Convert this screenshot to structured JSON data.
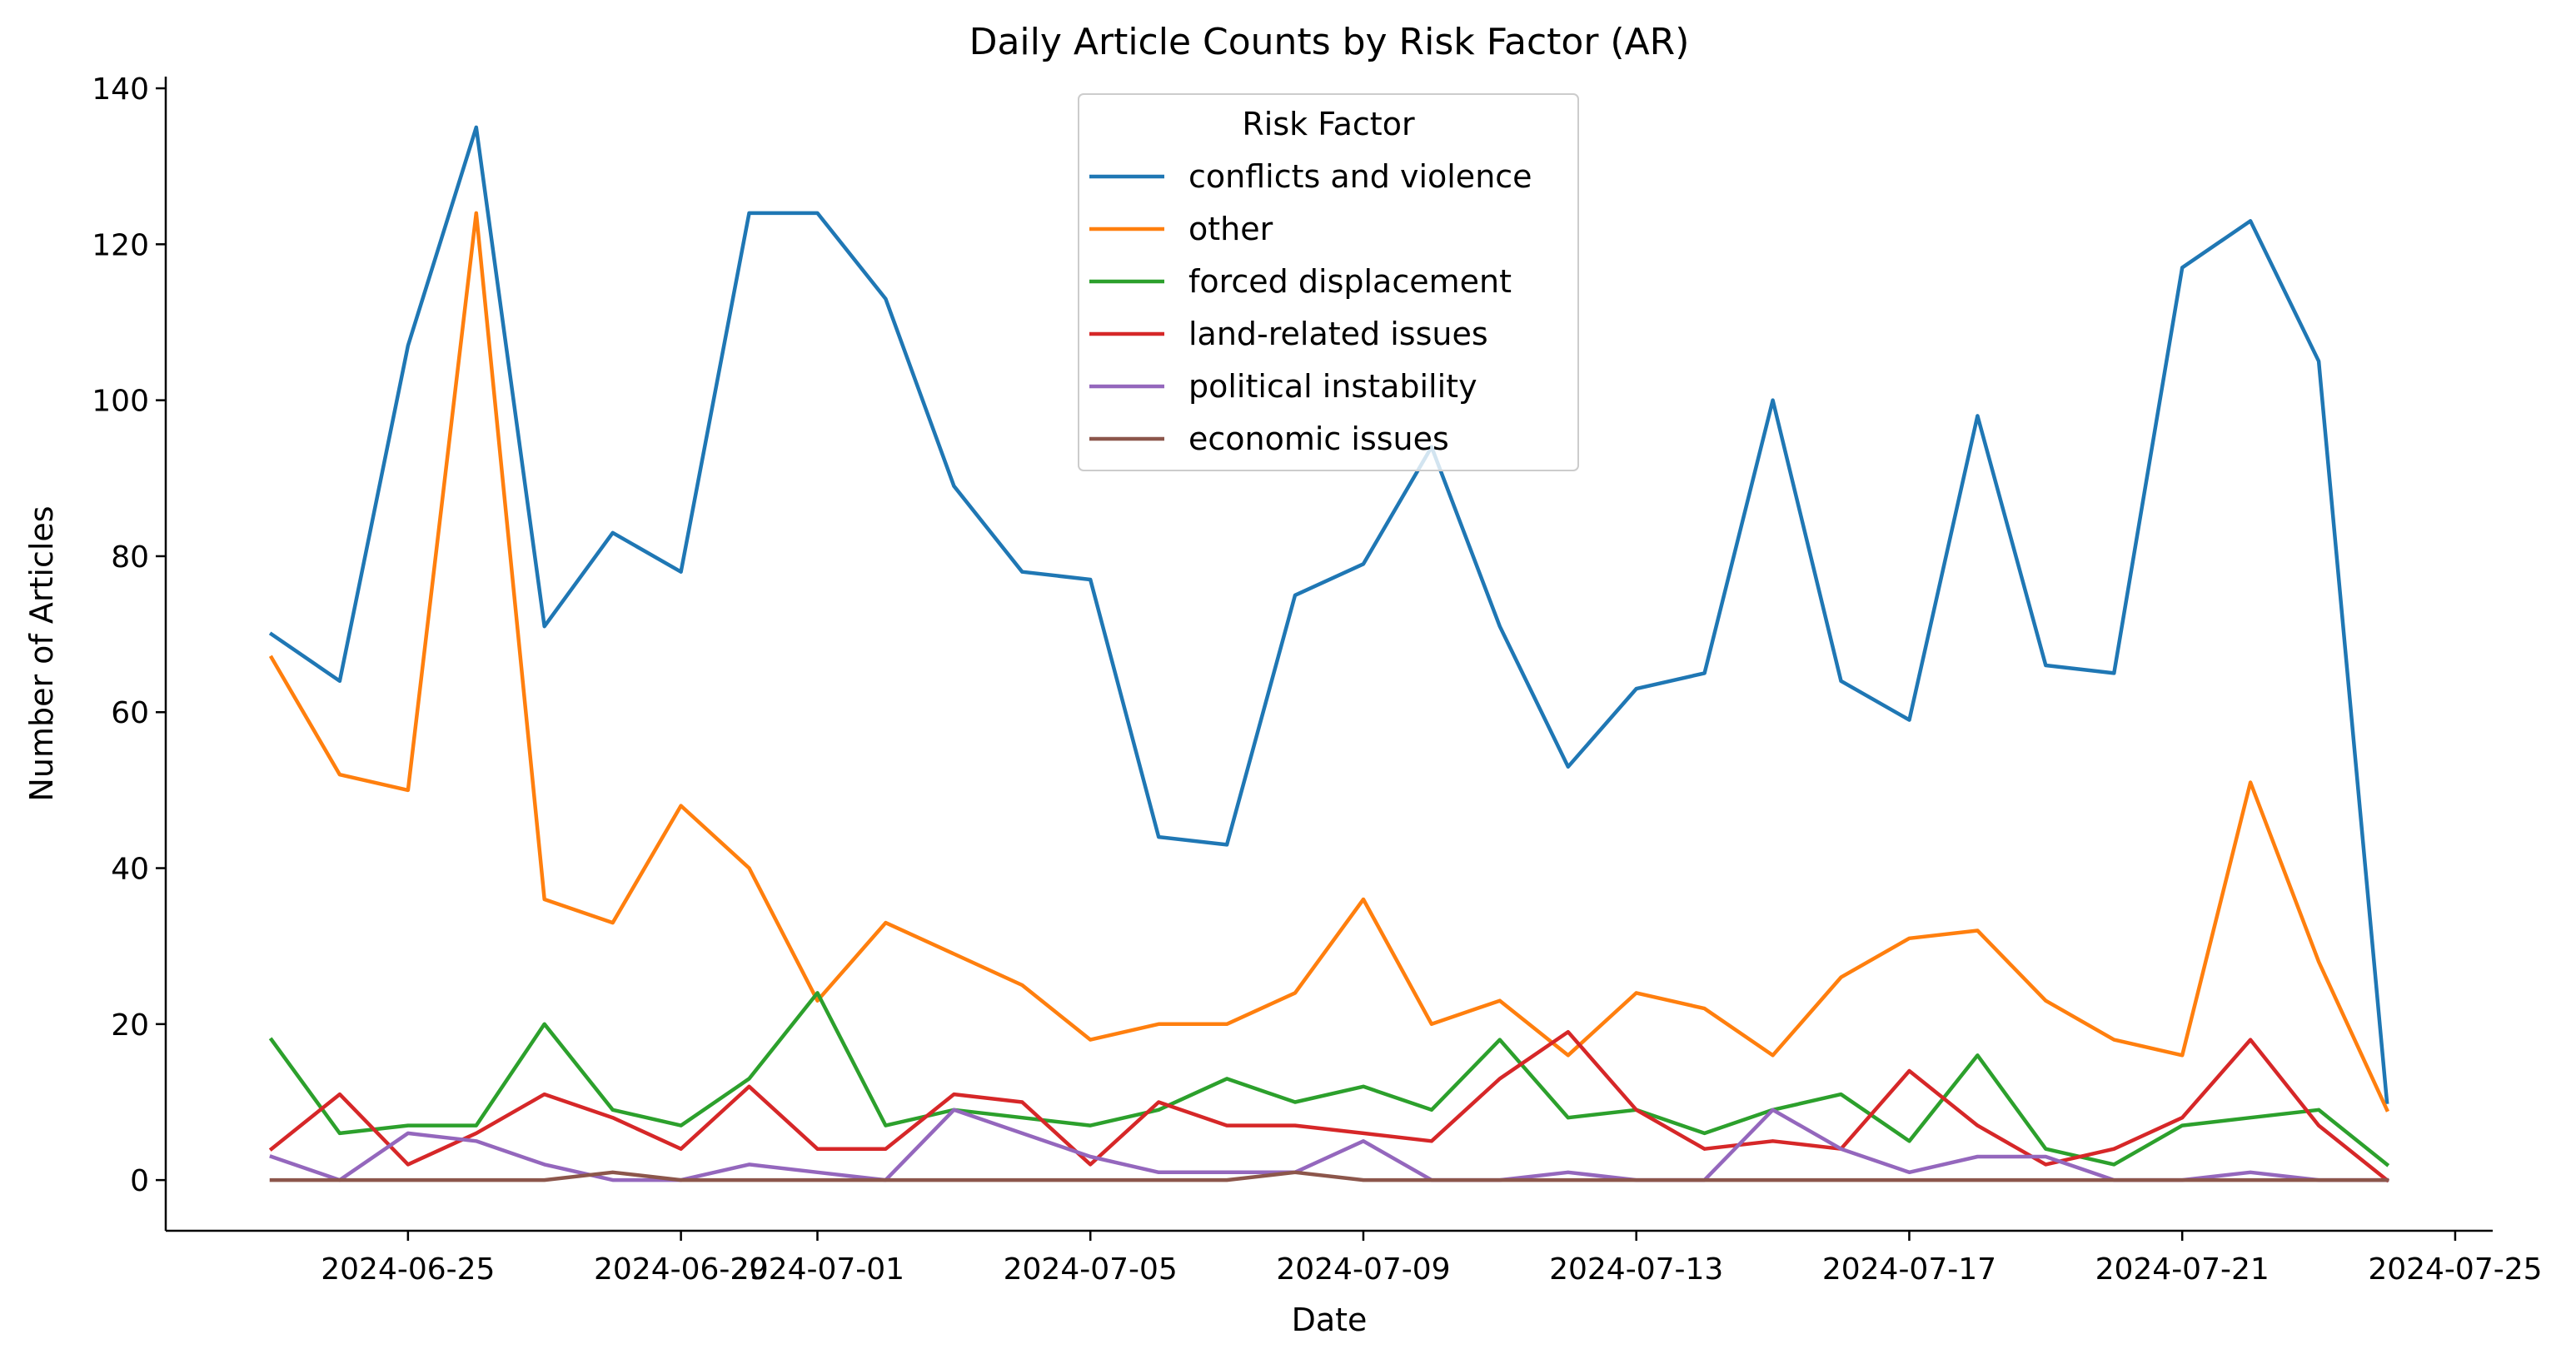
{
  "chart_data": {
    "type": "line",
    "title": "Daily Article Counts by Risk Factor (AR)",
    "xlabel": "Date",
    "ylabel": "Number of Articles",
    "x_tick_labels": [
      "2024-06-25",
      "2024-06-29",
      "2024-07-01",
      "2024-07-05",
      "2024-07-09",
      "2024-07-13",
      "2024-07-17",
      "2024-07-21",
      "2024-07-25"
    ],
    "y_ticks": [
      0,
      20,
      40,
      60,
      80,
      100,
      120,
      140
    ],
    "ylim": [
      -6.5,
      141.5
    ],
    "legend_title": "Risk Factor",
    "legend_position": "top-center",
    "grid": false,
    "x": [
      "2024-06-23",
      "2024-06-24",
      "2024-06-25",
      "2024-06-26",
      "2024-06-27",
      "2024-06-28",
      "2024-06-29",
      "2024-06-30",
      "2024-07-01",
      "2024-07-02",
      "2024-07-03",
      "2024-07-04",
      "2024-07-05",
      "2024-07-06",
      "2024-07-07",
      "2024-07-08",
      "2024-07-09",
      "2024-07-10",
      "2024-07-11",
      "2024-07-12",
      "2024-07-13",
      "2024-07-14",
      "2024-07-15",
      "2024-07-16",
      "2024-07-17",
      "2024-07-18",
      "2024-07-19",
      "2024-07-20",
      "2024-07-21",
      "2024-07-22",
      "2024-07-23",
      "2024-07-24"
    ],
    "series": [
      {
        "name": "conflicts and violence",
        "color": "#1f77b4",
        "values": [
          70,
          64,
          107,
          135,
          71,
          83,
          78,
          124,
          124,
          113,
          89,
          78,
          77,
          44,
          43,
          75,
          79,
          94,
          71,
          53,
          63,
          65,
          100,
          64,
          59,
          98,
          66,
          65,
          117,
          123,
          105,
          10
        ]
      },
      {
        "name": "other",
        "color": "#ff7f0e",
        "values": [
          67,
          52,
          50,
          124,
          36,
          33,
          48,
          40,
          23,
          33,
          29,
          25,
          18,
          20,
          20,
          24,
          36,
          20,
          23,
          16,
          24,
          22,
          16,
          26,
          31,
          32,
          23,
          18,
          16,
          51,
          28,
          9
        ]
      },
      {
        "name": "forced displacement",
        "color": "#2ca02c",
        "values": [
          18,
          6,
          7,
          7,
          20,
          9,
          7,
          13,
          24,
          7,
          9,
          8,
          7,
          9,
          13,
          10,
          12,
          9,
          18,
          8,
          9,
          6,
          9,
          11,
          5,
          16,
          4,
          2,
          7,
          8,
          9,
          2
        ]
      },
      {
        "name": "land-related issues",
        "color": "#d62728",
        "values": [
          4,
          11,
          2,
          6,
          11,
          8,
          4,
          12,
          4,
          4,
          11,
          10,
          2,
          10,
          7,
          7,
          6,
          5,
          13,
          19,
          9,
          4,
          5,
          4,
          14,
          7,
          2,
          4,
          8,
          18,
          7,
          0
        ]
      },
      {
        "name": "political instability",
        "color": "#9467bd",
        "values": [
          3,
          0,
          6,
          5,
          2,
          0,
          0,
          2,
          1,
          0,
          9,
          6,
          3,
          1,
          1,
          1,
          5,
          0,
          0,
          1,
          0,
          0,
          9,
          4,
          1,
          3,
          3,
          0,
          0,
          1,
          0,
          0
        ]
      },
      {
        "name": "economic issues",
        "color": "#8c564b",
        "values": [
          0,
          0,
          0,
          0,
          0,
          1,
          0,
          0,
          0,
          0,
          0,
          0,
          0,
          0,
          0,
          1,
          0,
          0,
          0,
          0,
          0,
          0,
          0,
          0,
          0,
          0,
          0,
          0,
          0,
          0,
          0,
          0
        ]
      }
    ]
  }
}
